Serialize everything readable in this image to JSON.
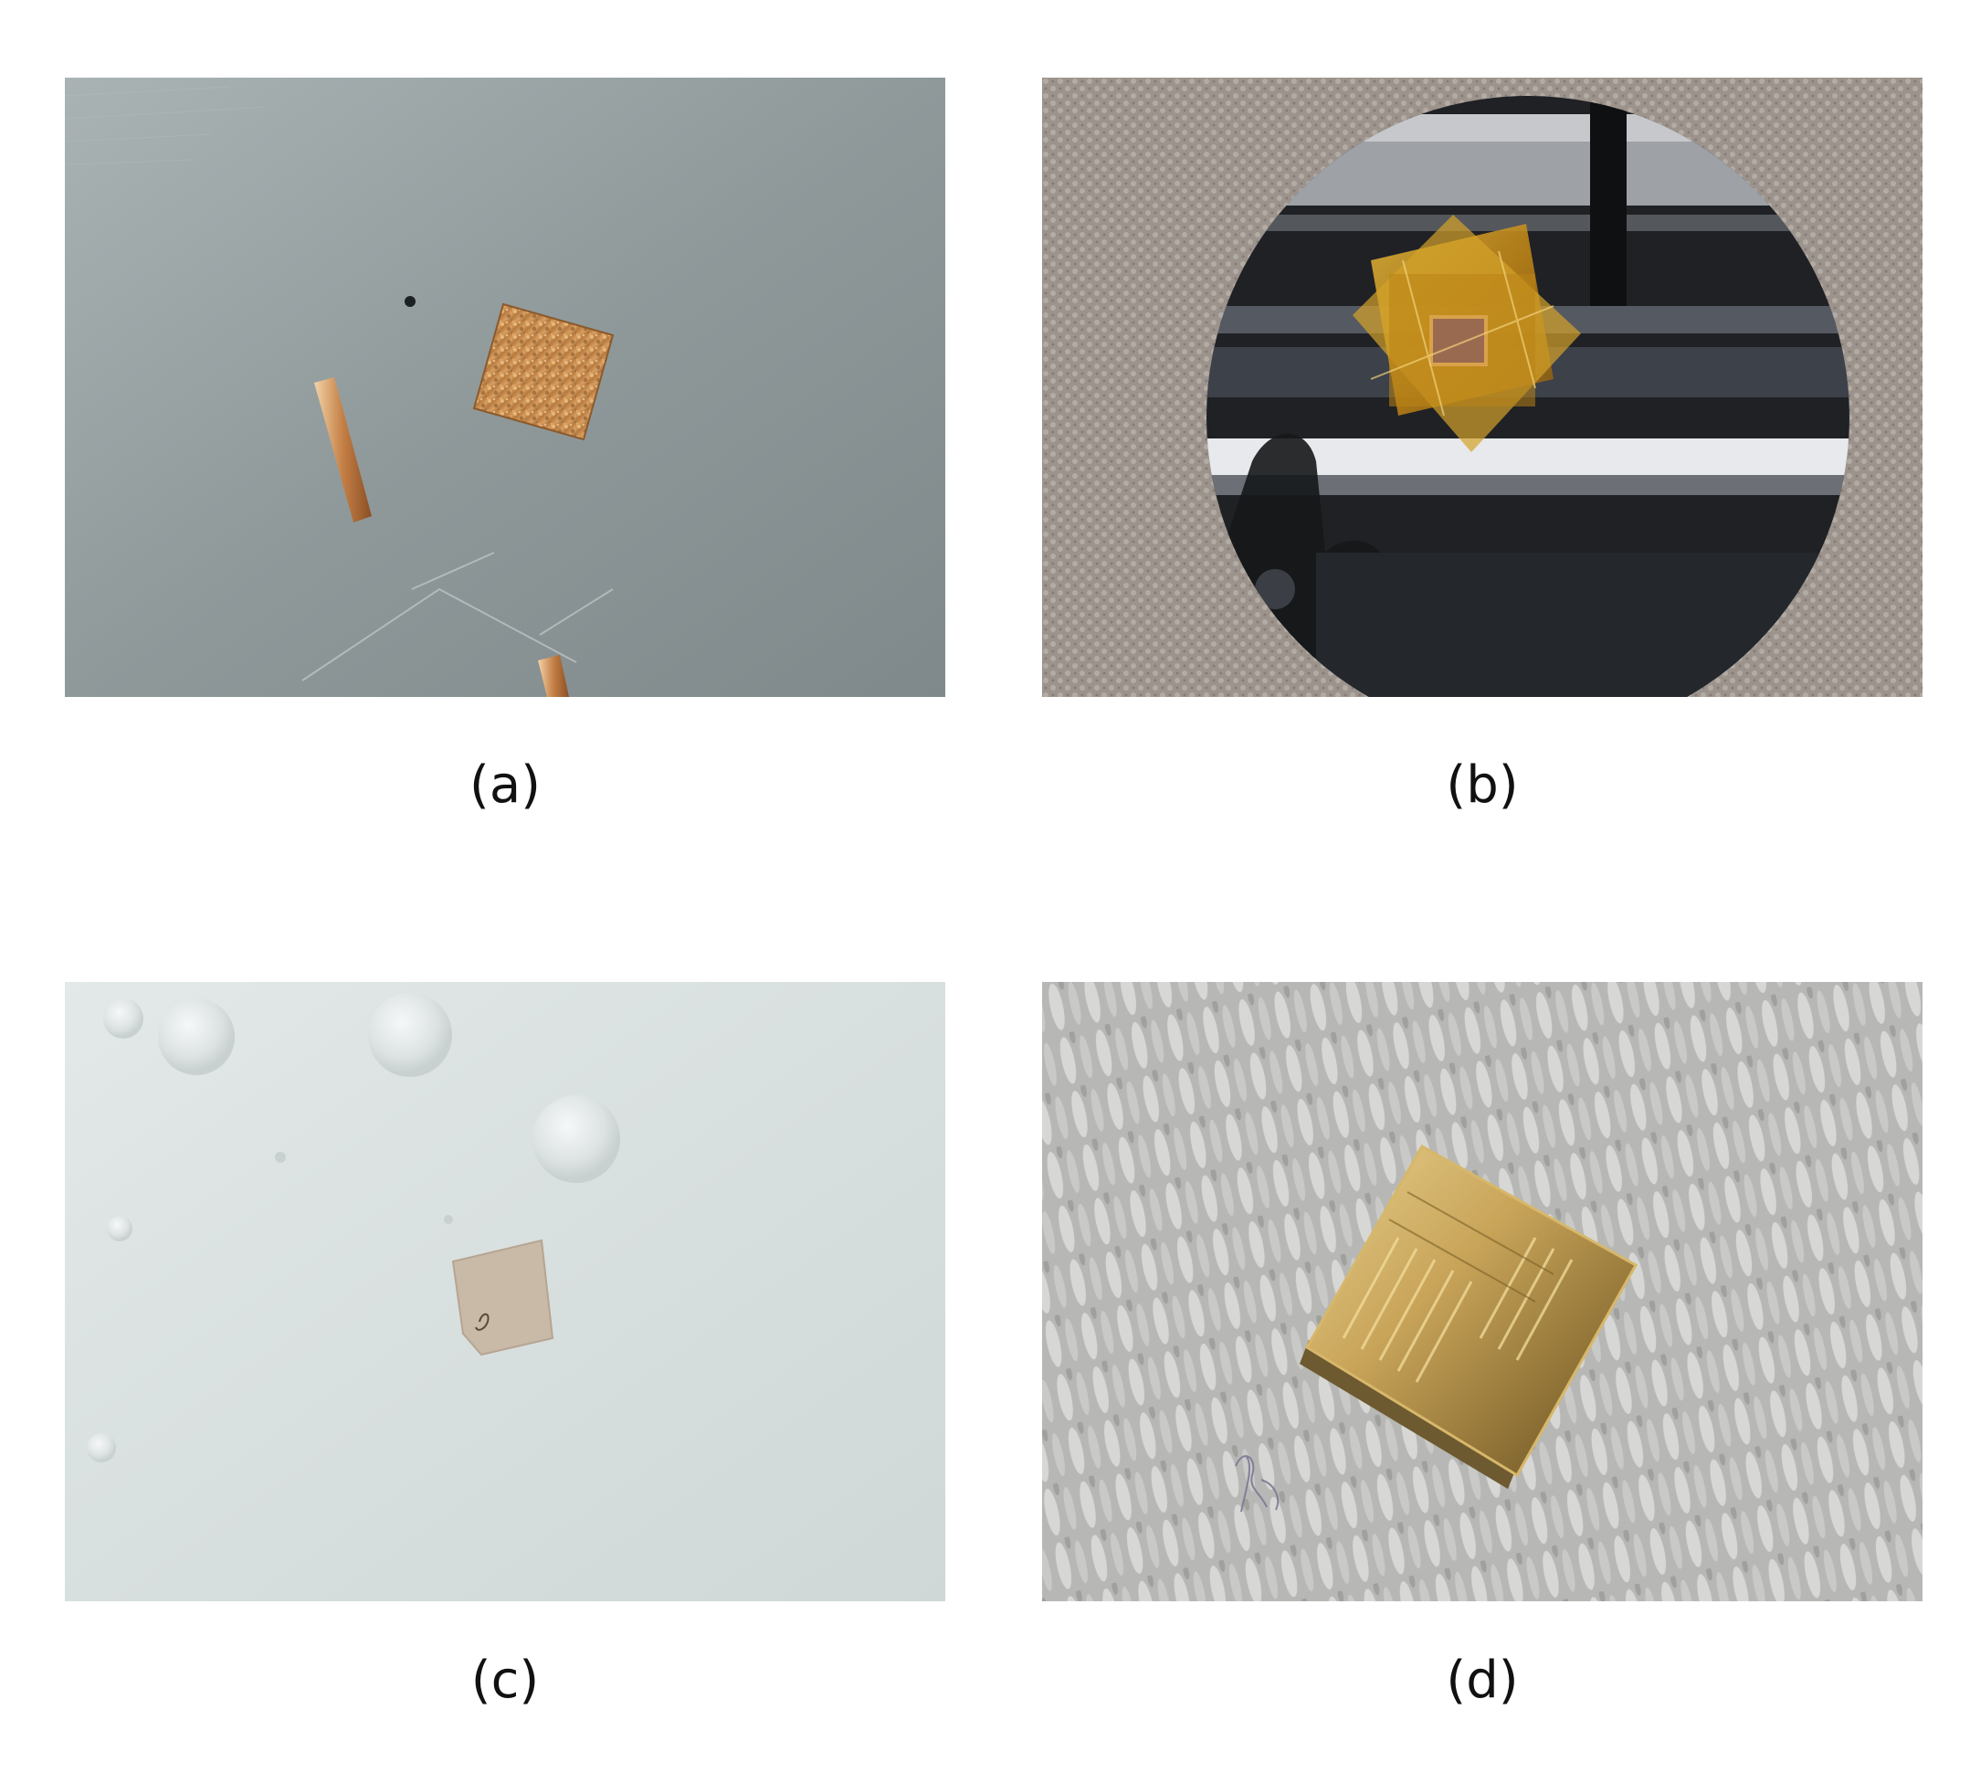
{
  "panels": [
    {
      "id": "a",
      "caption": "(a)"
    },
    {
      "id": "b",
      "caption": "(b)"
    },
    {
      "id": "c",
      "caption": "(c)"
    },
    {
      "id": "d",
      "caption": "(d)"
    }
  ],
  "colors": {
    "background": "#ffffff",
    "caption_text": "#111111",
    "metal_plate": "#8f9a9b",
    "copper_foil": "#c7884a",
    "kapton_tape": "#d8a21e",
    "wafer_dark": "#1e2024",
    "water_surface": "#d9dfdf",
    "cloth": "#b9b9b6",
    "gold_chip": "#c9a85a"
  }
}
